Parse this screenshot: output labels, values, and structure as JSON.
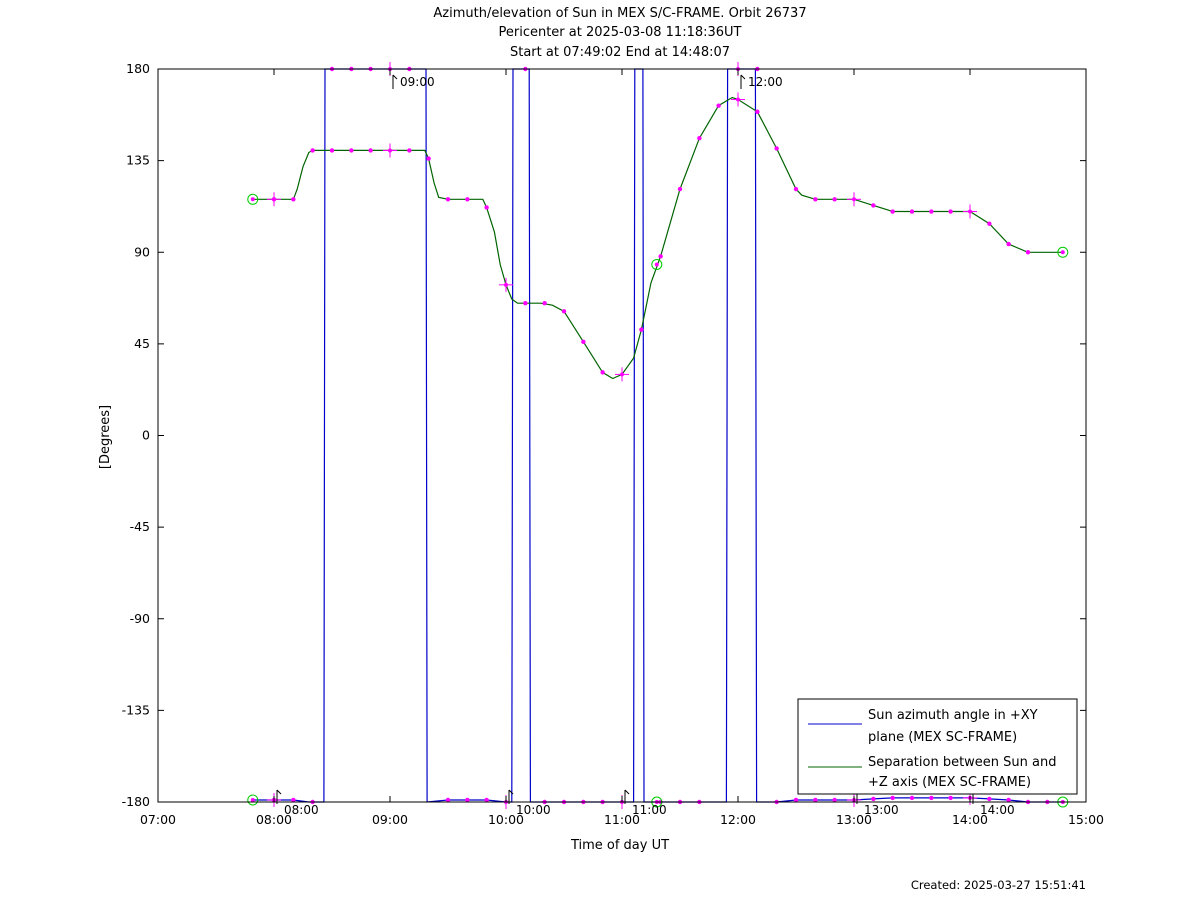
{
  "titles": [
    "Azimuth/elevation of Sun in MEX S/C-FRAME.  Orbit 26737",
    "Pericenter at 2025-03-08 11:18:36UT",
    "Start at 07:49:02 End at 14:48:07"
  ],
  "footer": "Created: 2025-03-27 15:51:41",
  "colors": {
    "azimuth": "#0000cc",
    "separation": "#006400",
    "marker": "#ff00ff",
    "endpoint": "#00cc00"
  },
  "chart_data": {
    "type": "line",
    "xlabel": "Time of day UT",
    "ylabel": "[Degrees]",
    "xlim": [
      7.0,
      15.0
    ],
    "ylim": [
      -180,
      180
    ],
    "x_tick_labels": [
      "07:00",
      "08:00",
      "09:00",
      "10:00",
      "11:00",
      "12:00",
      "13:00",
      "14:00",
      "15:00"
    ],
    "y_tick_labels": [
      "180",
      "135",
      "90",
      "45",
      "0",
      "-45",
      "-90",
      "-135",
      "-180"
    ],
    "grid": false,
    "legend_position": "bottom-right",
    "series": [
      {
        "name": "Sun azimuth angle in +XY plane (MEX SC-FRAME)",
        "legend_lines": [
          "Sun azimuth angle in +XY",
          "plane (MEX SC-FRAME)"
        ],
        "color": "#0000cc",
        "points": [
          [
            7.817,
            -179
          ],
          [
            8.0,
            -179
          ],
          [
            8.167,
            -179
          ],
          [
            8.3,
            -180
          ],
          [
            8.43,
            -180
          ],
          [
            8.44,
            180
          ],
          [
            8.5,
            180
          ],
          [
            8.667,
            180
          ],
          [
            8.833,
            180
          ],
          [
            9.0,
            180
          ],
          [
            9.167,
            180
          ],
          [
            9.31,
            180
          ],
          [
            9.32,
            -180
          ],
          [
            9.5,
            -179
          ],
          [
            9.667,
            -179
          ],
          [
            9.833,
            -179
          ],
          [
            10.0,
            -180
          ],
          [
            10.05,
            -180
          ],
          [
            10.06,
            180
          ],
          [
            10.15,
            180
          ],
          [
            10.2,
            180
          ],
          [
            10.21,
            -180
          ],
          [
            10.333,
            -180
          ],
          [
            10.5,
            -180
          ],
          [
            10.667,
            -180
          ],
          [
            10.833,
            -180
          ],
          [
            11.0,
            -180
          ],
          [
            11.1,
            -180
          ],
          [
            11.11,
            180
          ],
          [
            11.18,
            180
          ],
          [
            11.19,
            -180
          ],
          [
            11.333,
            -180
          ],
          [
            11.5,
            -180
          ],
          [
            11.667,
            -180
          ],
          [
            11.9,
            -180
          ],
          [
            11.91,
            180
          ],
          [
            12.15,
            180
          ],
          [
            12.16,
            -180
          ],
          [
            12.333,
            -180
          ],
          [
            12.5,
            -179
          ],
          [
            12.667,
            -179
          ],
          [
            12.833,
            -179
          ],
          [
            13.0,
            -179
          ],
          [
            13.167,
            -178.5
          ],
          [
            13.333,
            -178
          ],
          [
            13.5,
            -178
          ],
          [
            13.667,
            -178
          ],
          [
            13.833,
            -178
          ],
          [
            14.0,
            -178
          ],
          [
            14.167,
            -178.5
          ],
          [
            14.333,
            -179
          ],
          [
            14.5,
            -180
          ],
          [
            14.667,
            -180
          ],
          [
            14.8,
            -180
          ]
        ],
        "markers": [
          [
            8.0,
            -179
          ],
          [
            8.167,
            -179
          ],
          [
            8.333,
            -180
          ],
          [
            8.5,
            180
          ],
          [
            8.667,
            180
          ],
          [
            8.833,
            180
          ],
          [
            9.167,
            180
          ],
          [
            9.5,
            -179
          ],
          [
            9.667,
            -179
          ],
          [
            9.833,
            -179
          ],
          [
            10.167,
            180
          ],
          [
            10.333,
            -180
          ],
          [
            10.5,
            -180
          ],
          [
            10.667,
            -180
          ],
          [
            10.833,
            -180
          ],
          [
            11.333,
            -180
          ],
          [
            11.5,
            -180
          ],
          [
            11.667,
            -180
          ],
          [
            12.167,
            180
          ],
          [
            12.333,
            -180
          ],
          [
            12.5,
            -179
          ],
          [
            12.667,
            -179
          ],
          [
            12.833,
            -179
          ],
          [
            13.167,
            -178.5
          ],
          [
            13.333,
            -178
          ],
          [
            13.5,
            -178
          ],
          [
            13.667,
            -178
          ],
          [
            13.833,
            -178
          ],
          [
            14.167,
            -178.5
          ],
          [
            14.333,
            -179
          ],
          [
            14.5,
            -180
          ],
          [
            14.667,
            -180
          ]
        ],
        "hour_crosses": [
          [
            8.0,
            -179
          ],
          [
            9.0,
            180
          ],
          [
            10.0,
            -180
          ],
          [
            11.0,
            -180
          ],
          [
            12.0,
            180
          ],
          [
            13.0,
            -179
          ],
          [
            14.0,
            -178
          ]
        ],
        "endpoints": [
          [
            7.817,
            -179
          ],
          [
            11.3,
            -180
          ],
          [
            14.8,
            -180
          ]
        ]
      },
      {
        "name": "Separation between Sun and +Z axis (MEX SC-FRAME)",
        "legend_lines": [
          "Separation between Sun and",
          "+Z axis (MEX SC-FRAME)"
        ],
        "color": "#006400",
        "points": [
          [
            7.817,
            116
          ],
          [
            8.0,
            116
          ],
          [
            8.167,
            116
          ],
          [
            8.2,
            121
          ],
          [
            8.25,
            132
          ],
          [
            8.3,
            139
          ],
          [
            8.333,
            140
          ],
          [
            8.5,
            140
          ],
          [
            8.667,
            140
          ],
          [
            8.833,
            140
          ],
          [
            9.0,
            140
          ],
          [
            9.167,
            140
          ],
          [
            9.3,
            140
          ],
          [
            9.333,
            136
          ],
          [
            9.38,
            124
          ],
          [
            9.42,
            117
          ],
          [
            9.5,
            116
          ],
          [
            9.667,
            116
          ],
          [
            9.8,
            116
          ],
          [
            9.833,
            112
          ],
          [
            9.9,
            100
          ],
          [
            9.95,
            84
          ],
          [
            10.0,
            74
          ],
          [
            10.05,
            67
          ],
          [
            10.1,
            65
          ],
          [
            10.167,
            65
          ],
          [
            10.3,
            65
          ],
          [
            10.4,
            64
          ],
          [
            10.5,
            61
          ],
          [
            10.667,
            46
          ],
          [
            10.833,
            31
          ],
          [
            10.92,
            28
          ],
          [
            11.0,
            30
          ],
          [
            11.1,
            38
          ],
          [
            11.167,
            52
          ],
          [
            11.25,
            75
          ],
          [
            11.333,
            88
          ],
          [
            11.5,
            121
          ],
          [
            11.667,
            146
          ],
          [
            11.833,
            162
          ],
          [
            11.95,
            166
          ],
          [
            12.0,
            165
          ],
          [
            12.167,
            159
          ],
          [
            12.333,
            141
          ],
          [
            12.5,
            121
          ],
          [
            12.55,
            118
          ],
          [
            12.667,
            116
          ],
          [
            12.833,
            116
          ],
          [
            13.0,
            116
          ],
          [
            13.167,
            113
          ],
          [
            13.333,
            110
          ],
          [
            13.5,
            110
          ],
          [
            13.667,
            110
          ],
          [
            13.833,
            110
          ],
          [
            14.0,
            110
          ],
          [
            14.167,
            104
          ],
          [
            14.333,
            94
          ],
          [
            14.5,
            90
          ],
          [
            14.8,
            90
          ]
        ],
        "markers": [
          [
            8.0,
            116
          ],
          [
            8.167,
            116
          ],
          [
            8.333,
            140
          ],
          [
            8.5,
            140
          ],
          [
            8.667,
            140
          ],
          [
            8.833,
            140
          ],
          [
            9.167,
            140
          ],
          [
            9.333,
            136
          ],
          [
            9.5,
            116
          ],
          [
            9.667,
            116
          ],
          [
            9.833,
            112
          ],
          [
            10.167,
            65
          ],
          [
            10.333,
            65
          ],
          [
            10.5,
            61
          ],
          [
            10.667,
            46
          ],
          [
            10.833,
            31
          ],
          [
            11.167,
            52
          ],
          [
            11.333,
            88
          ],
          [
            11.5,
            121
          ],
          [
            11.667,
            146
          ],
          [
            11.833,
            162
          ],
          [
            12.167,
            159
          ],
          [
            12.333,
            141
          ],
          [
            12.5,
            121
          ],
          [
            12.667,
            116
          ],
          [
            12.833,
            116
          ],
          [
            13.167,
            113
          ],
          [
            13.333,
            110
          ],
          [
            13.5,
            110
          ],
          [
            13.667,
            110
          ],
          [
            13.833,
            110
          ],
          [
            14.167,
            104
          ],
          [
            14.333,
            94
          ],
          [
            14.5,
            90
          ]
        ],
        "hour_crosses": [
          [
            8.0,
            116
          ],
          [
            9.0,
            140
          ],
          [
            10.0,
            74
          ],
          [
            11.0,
            30
          ],
          [
            12.0,
            165
          ],
          [
            13.0,
            116
          ],
          [
            14.0,
            110
          ]
        ],
        "endpoints": [
          [
            7.817,
            116
          ],
          [
            11.3,
            84
          ],
          [
            14.8,
            90
          ]
        ]
      }
    ],
    "time_marks": [
      {
        "x": 8.0,
        "y": -180,
        "label": "08:00"
      },
      {
        "x": 9.0,
        "y": 180,
        "label": "09:00"
      },
      {
        "x": 10.0,
        "y": -180,
        "label": "10:00"
      },
      {
        "x": 11.0,
        "y": -180,
        "label": "11:00"
      },
      {
        "x": 12.0,
        "y": 180,
        "label": "12:00"
      },
      {
        "x": 13.0,
        "y": -180,
        "label": "13:00"
      },
      {
        "x": 14.0,
        "y": -180,
        "label": "14:00"
      }
    ]
  }
}
